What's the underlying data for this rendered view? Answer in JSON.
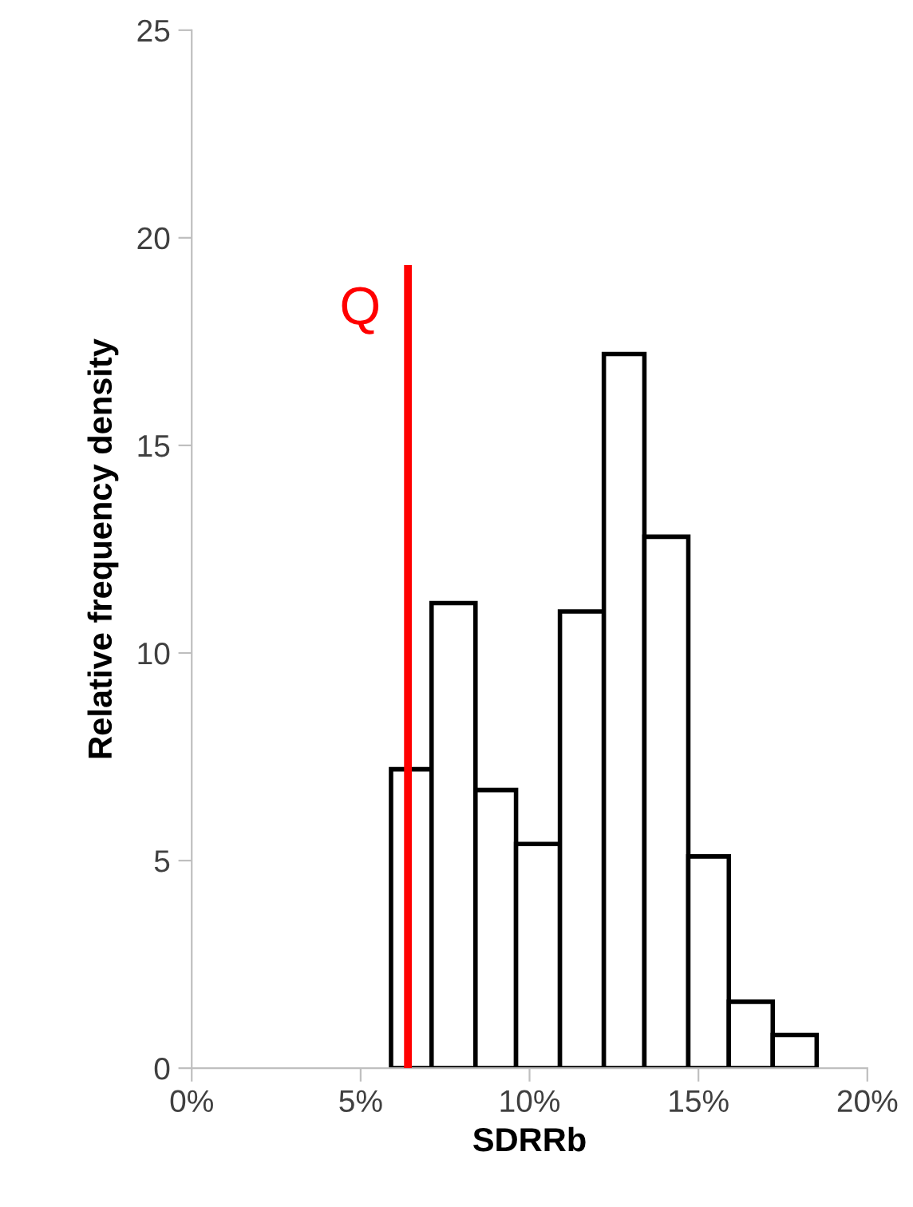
{
  "chart_data": {
    "type": "histogram",
    "xlabel": "SDRRb",
    "ylabel": "Relative frequency density",
    "bins": [
      5.9,
      7.1,
      8.4,
      9.6,
      10.9,
      12.2,
      13.4,
      14.7,
      15.9,
      17.2,
      18.5
    ],
    "values": [
      7.2,
      11.2,
      6.7,
      5.4,
      11.0,
      17.2,
      12.8,
      5.1,
      1.6,
      0.8
    ],
    "color": "#ffffff",
    "xlim": [
      0,
      20
    ],
    "xticks": [
      {
        "value": 0,
        "label": "0%"
      },
      {
        "value": 5,
        "label": "5%"
      },
      {
        "value": 10,
        "label": "10%"
      },
      {
        "value": 15,
        "label": "15%"
      },
      {
        "value": 20,
        "label": "20%"
      }
    ],
    "ylim": [
      0,
      25
    ],
    "yticks": [
      0,
      5,
      10,
      15,
      20,
      25
    ],
    "ref_lines": [
      {
        "axis": "x",
        "value": 6.4,
        "label": "Q",
        "color": "#ff0000"
      }
    ],
    "grid": false,
    "legend": false
  }
}
